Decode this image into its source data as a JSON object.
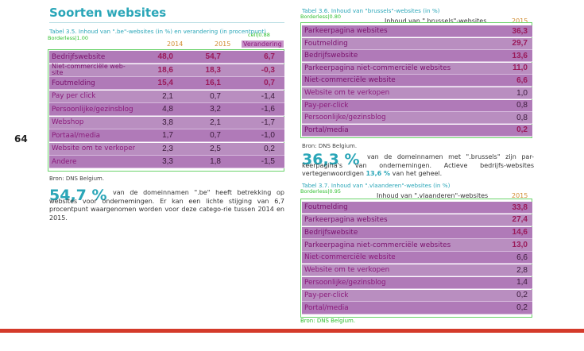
{
  "page_number": "64",
  "heading": "Soorten websites",
  "left": {
    "caption": "Tabel 3.5. Inhoud van \".be\"-websites (in %) en verandering (in procentpunt)",
    "debug_label": "Borderless|1.00",
    "debug_label2": "cell|0.88",
    "col_2014": "2014",
    "col_2015": "2015",
    "col_change": "Verandering",
    "rows": [
      {
        "label": "Bedrijfswebsite",
        "v2014": "48,0",
        "v2015": "54,7",
        "change": "6,7",
        "bold": true
      },
      {
        "label": "Niet-commerciële web-site",
        "v2014": "18,6",
        "v2015": "18,3",
        "change": "-0,3",
        "bold": true
      },
      {
        "label": "Foutmelding",
        "v2014": "15,4",
        "v2015": "16,1",
        "change": "0,7",
        "bold": true
      },
      {
        "label": "Pay per click",
        "v2014": "2,1",
        "v2015": "0,7",
        "change": "-1,4"
      },
      {
        "label": "Persoonlijke/gezinsblog",
        "v2014": "4,8",
        "v2015": "3,2",
        "change": "-1,6"
      },
      {
        "label": "Webshop",
        "v2014": "3,8",
        "v2015": "2,1",
        "change": "-1,7"
      },
      {
        "label": "Portaal/media",
        "v2014": "1,7",
        "v2015": "0,7",
        "change": "-1,0"
      },
      {
        "label": "Website om te verkopen",
        "v2014": "2,3",
        "v2015": "2,5",
        "change": "0,2"
      },
      {
        "label": "Andere",
        "v2014": "3,3",
        "v2015": "1,8",
        "change": "-1,5"
      }
    ],
    "source": "Bron: DNS Belgium.",
    "big_number": "54,7 %",
    "paragraph_1": "van de domeinnamen \".be\" heeft betrekking op websites voor ondernemingen. Er kan een lichte stijging van 6,7 procentpunt waargenomen worden voor deze catego-rie tussen 2014 en 2015."
  },
  "right_top": {
    "caption": "Tabel 3.6. Inhoud van \"brussels\"-websites (in %)",
    "debug_label": "Borderless|0.80",
    "header": "Inhoud van \".brussels\"-websites",
    "year": "2015",
    "rows": [
      {
        "label": "Parkeerpagina websites",
        "value": "36,3",
        "bold": true
      },
      {
        "label": "Foutmelding",
        "value": "29,7",
        "bold": true
      },
      {
        "label": "Bedrijfswebsite",
        "value": "13,6",
        "bold": true
      },
      {
        "label": "Parkeerpagina niet-commerciële websites",
        "value": "11,0",
        "bold": true
      },
      {
        "label": "Niet-commerciële website",
        "value": "6,6",
        "bold": true
      },
      {
        "label": "Website om te verkopen",
        "value": "1,0"
      },
      {
        "label": "Pay-per-click",
        "value": "0,8"
      },
      {
        "label": "Persoonlijke/gezinsblog",
        "value": "0,8"
      },
      {
        "label": "Portal/media",
        "value": "0,2",
        "bold": true
      }
    ],
    "source": "Bron: DNS Belgium.",
    "big_number": "36,3 %",
    "paragraph_lead": "van de domeinnamen met \".brussels\" zijn par-keerpagina's van ondernemingen. Actieve bedrijfs-websites vertegenwoordigen",
    "paragraph_hl": "13,6 %",
    "paragraph_tail": "van het geheel."
  },
  "right_bottom": {
    "caption": "Tabel 3.7. Inhoud van \".vlaanderen\"-websites (in %)",
    "debug_label": "Borderless|0.95",
    "header": "Inhoud van \".vlaanderen\"-websites",
    "year": "2015",
    "rows": [
      {
        "label": "Foutmelding",
        "value": "33,8",
        "bold": true
      },
      {
        "label": "Parkeerpagina websites",
        "value": "27,4",
        "bold": true
      },
      {
        "label": "Bedrijfswebsite",
        "value": "14,6",
        "bold": true
      },
      {
        "label": "Parkeerpagina niet-commerciële websites",
        "value": "13,0",
        "bold": true
      },
      {
        "label": "Niet-commerciële website",
        "value": "6,6"
      },
      {
        "label": "Website om te verkopen",
        "value": "2,8"
      },
      {
        "label": "Persoonlijke/gezinsblog",
        "value": "1,4"
      },
      {
        "label": "Pay-per-click",
        "value": "0,2"
      },
      {
        "label": "Portal/media",
        "value": "0,2"
      }
    ],
    "source": "Bron: DNS Belgium."
  }
}
